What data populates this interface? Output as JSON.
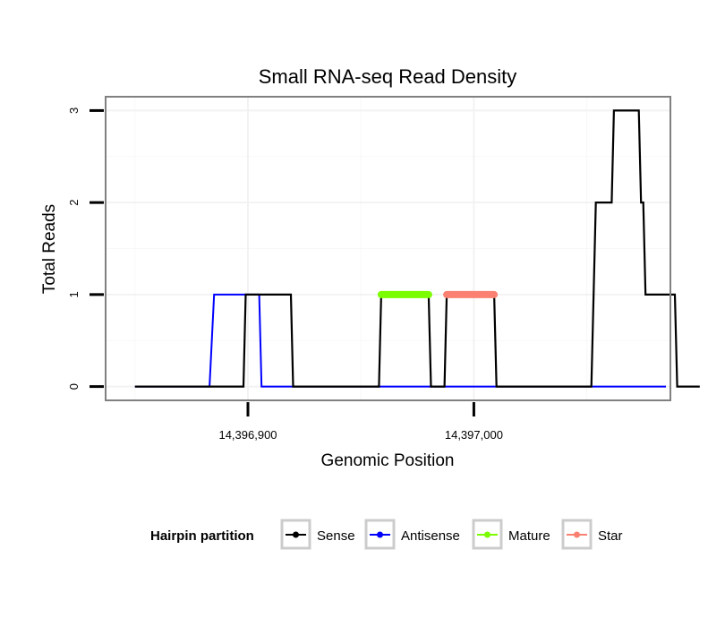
{
  "chart_data": {
    "type": "line",
    "title": "Small RNA-seq Read Density",
    "xlabel": "Genomic Position",
    "ylabel": "Total Reads",
    "xlim": [
      14396837,
      14397087
    ],
    "ylim": [
      -0.15,
      3.15
    ],
    "x_ticks": [
      {
        "value": 14396900,
        "label": "14,396,900"
      },
      {
        "value": 14397000,
        "label": "14,397,000"
      }
    ],
    "y_ticks": [
      {
        "value": 0,
        "label": "0"
      },
      {
        "value": 1,
        "label": "1"
      },
      {
        "value": 2,
        "label": "2"
      },
      {
        "value": 3,
        "label": "3"
      }
    ],
    "grid": true,
    "legend": {
      "title": "Hairpin partition",
      "position": "bottom",
      "entries": [
        {
          "name": "Sense",
          "color": "#000000"
        },
        {
          "name": "Antisense",
          "color": "#0000ff"
        },
        {
          "name": "Mature",
          "color": "#7cfc00"
        },
        {
          "name": "Star",
          "color": "#fa8072"
        }
      ]
    },
    "series": [
      {
        "name": "Antisense",
        "color": "#0000ff",
        "width": 2,
        "x": [
          14396850,
          14396883,
          14396885,
          14396905,
          14396906,
          14396926,
          14396927,
          14397085
        ],
        "y": [
          0,
          0,
          1,
          1,
          0,
          0,
          0,
          0
        ]
      },
      {
        "name": "Sense",
        "color": "#000000",
        "width": 2.2,
        "x": [
          14396850,
          14396898,
          14396899,
          14396919,
          14396920,
          14396958,
          14396959,
          14396980,
          14396981,
          14396987,
          14396988,
          14397009,
          14397010,
          14397052,
          14397054,
          14397061,
          14397062,
          14397073,
          14397074,
          14397075,
          14397076,
          14397089,
          14397090,
          14397100
        ],
        "y": [
          0,
          0,
          1,
          1,
          0,
          0,
          1,
          1,
          0,
          0,
          1,
          1,
          0,
          0,
          2,
          2,
          3,
          3,
          2,
          2,
          1,
          1,
          0,
          0
        ]
      },
      {
        "name": "Mature",
        "color": "#7cfc00",
        "width": 8,
        "x": [
          14396959,
          14396980
        ],
        "y": [
          1,
          1
        ]
      },
      {
        "name": "Star",
        "color": "#fa8072",
        "width": 8,
        "x": [
          14396988,
          14397009
        ],
        "y": [
          1,
          1
        ]
      }
    ]
  }
}
